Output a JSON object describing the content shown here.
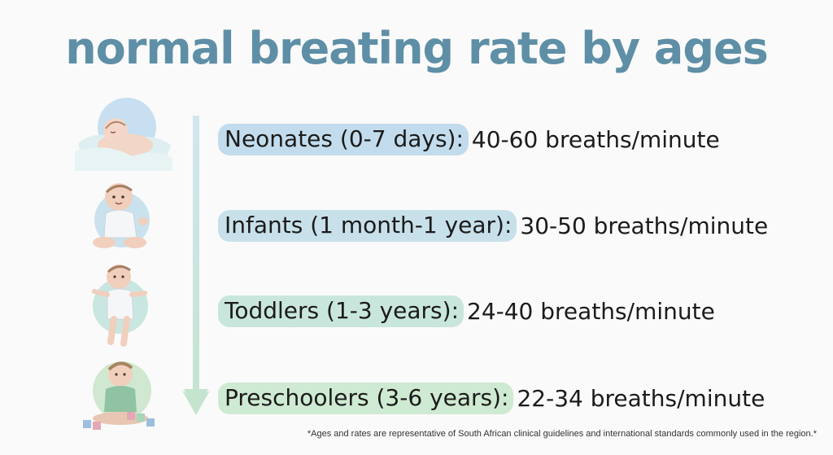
{
  "title": "normal breating rate by ages",
  "rows": [
    {
      "label": "Neonates (0-7 days):",
      "rate": "40-60 breaths/minute",
      "pill_color": "#c3dced",
      "icon": "sleeping-newborn-illustration"
    },
    {
      "label": "Infants (1 month-1 year):",
      "rate": "30-50 breaths/minute",
      "pill_color": "#c8e0ea",
      "icon": "sitting-infant-illustration"
    },
    {
      "label": "Toddlers (1-3 years):",
      "rate": "24-40 breaths/minute",
      "pill_color": "#c9e6dd",
      "icon": "walking-toddler-illustration"
    },
    {
      "label": "Preschoolers (3-6 years):",
      "rate": "22-34 breaths/minute",
      "pill_color": "#cfead2",
      "icon": "preschooler-with-blocks-illustration"
    }
  ],
  "footnote": "*Ages and rates are representative of South African clinical guidelines and international standards commonly used in the region.*",
  "colors": {
    "title": "#5e8fa6",
    "arrow_top": "#cfe4ee",
    "arrow_bottom": "#cbe7d6"
  }
}
